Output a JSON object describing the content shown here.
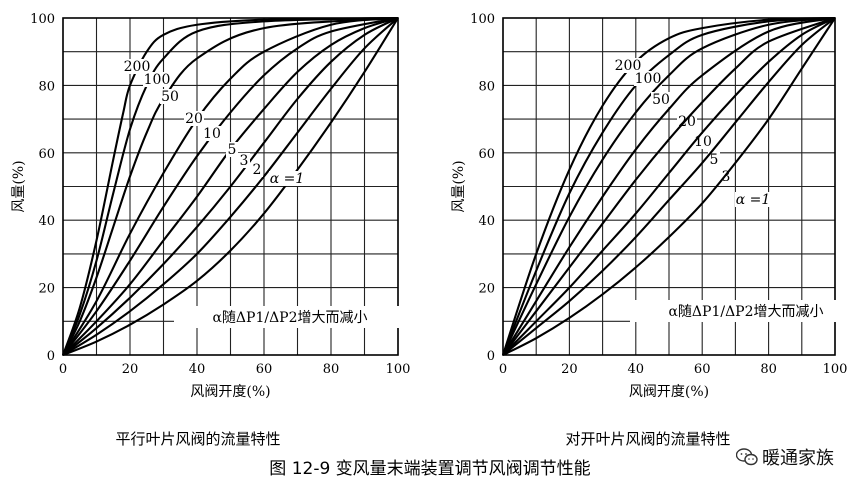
{
  "figure": {
    "caption": "图 12-9  变风量末端装置调节风阀调节性能",
    "watermark": "暖通家族"
  },
  "chart_data": [
    {
      "type": "line",
      "title": "平行叶片风阀的流量特性",
      "xlabel": "风阀开度(%)",
      "ylabel": "风量(%)",
      "xlim": [
        0,
        100
      ],
      "ylim": [
        0,
        100
      ],
      "xticks": [
        0,
        20,
        40,
        60,
        80,
        100
      ],
      "yticks": [
        0,
        20,
        40,
        60,
        80,
        100
      ],
      "grid": true,
      "annotation": "α随ΔP1/ΔP2增大而减小",
      "series": [
        {
          "name": "200",
          "points": [
            [
              0,
              0
            ],
            [
              5,
              14
            ],
            [
              10,
              34
            ],
            [
              15,
              58
            ],
            [
              18,
              72
            ],
            [
              20,
              80
            ],
            [
              25,
              90
            ],
            [
              30,
              95
            ],
            [
              40,
              98
            ],
            [
              60,
              99.5
            ],
            [
              100,
              100
            ]
          ]
        },
        {
          "name": "100",
          "points": [
            [
              0,
              0
            ],
            [
              5,
              12
            ],
            [
              10,
              28
            ],
            [
              15,
              48
            ],
            [
              20,
              67
            ],
            [
              25,
              80
            ],
            [
              30,
              88
            ],
            [
              40,
              96
            ],
            [
              60,
              99
            ],
            [
              100,
              100
            ]
          ]
        },
        {
          "name": "50",
          "points": [
            [
              0,
              0
            ],
            [
              5,
              10
            ],
            [
              10,
              23
            ],
            [
              15,
              38
            ],
            [
              20,
              53
            ],
            [
              25,
              66
            ],
            [
              30,
              76
            ],
            [
              40,
              88
            ],
            [
              60,
              97
            ],
            [
              100,
              100
            ]
          ]
        },
        {
          "name": "20",
          "points": [
            [
              0,
              0
            ],
            [
              10,
              16
            ],
            [
              20,
              36
            ],
            [
              30,
              54
            ],
            [
              40,
              70
            ],
            [
              50,
              82
            ],
            [
              60,
              90
            ],
            [
              80,
              98
            ],
            [
              100,
              100
            ]
          ]
        },
        {
          "name": "10",
          "points": [
            [
              0,
              0
            ],
            [
              10,
              13
            ],
            [
              20,
              28
            ],
            [
              30,
              44
            ],
            [
              40,
              59
            ],
            [
              50,
              72
            ],
            [
              60,
              83
            ],
            [
              70,
              91
            ],
            [
              80,
              96
            ],
            [
              100,
              100
            ]
          ]
        },
        {
          "name": "5",
          "points": [
            [
              0,
              0
            ],
            [
              10,
              10
            ],
            [
              20,
              21
            ],
            [
              30,
              34
            ],
            [
              40,
              47
            ],
            [
              50,
              61
            ],
            [
              60,
              73
            ],
            [
              70,
              84
            ],
            [
              80,
              92
            ],
            [
              90,
              97
            ],
            [
              100,
              100
            ]
          ]
        },
        {
          "name": "3",
          "points": [
            [
              0,
              0
            ],
            [
              10,
              8
            ],
            [
              20,
              17
            ],
            [
              30,
              27
            ],
            [
              40,
              38
            ],
            [
              50,
              50
            ],
            [
              60,
              63
            ],
            [
              70,
              76
            ],
            [
              80,
              87
            ],
            [
              90,
              95
            ],
            [
              100,
              100
            ]
          ]
        },
        {
          "name": "2",
          "points": [
            [
              0,
              0
            ],
            [
              10,
              6
            ],
            [
              20,
              13
            ],
            [
              30,
              21
            ],
            [
              40,
              30
            ],
            [
              50,
              41
            ],
            [
              60,
              53
            ],
            [
              70,
              66
            ],
            [
              80,
              79
            ],
            [
              90,
              91
            ],
            [
              100,
              100
            ]
          ]
        },
        {
          "name": "α =1",
          "points": [
            [
              0,
              0
            ],
            [
              10,
              4
            ],
            [
              20,
              9
            ],
            [
              30,
              15
            ],
            [
              40,
              22
            ],
            [
              50,
              31
            ],
            [
              60,
              42
            ],
            [
              70,
              55
            ],
            [
              80,
              69
            ],
            [
              90,
              84
            ],
            [
              100,
              100
            ]
          ]
        }
      ]
    },
    {
      "type": "line",
      "title": "对开叶片风阀的流量特性",
      "xlabel": "风阀开度(%)",
      "ylabel": "风量(%)",
      "xlim": [
        0,
        100
      ],
      "ylim": [
        0,
        100
      ],
      "xticks": [
        0,
        20,
        40,
        60,
        80,
        100
      ],
      "yticks": [
        0,
        20,
        40,
        60,
        80,
        100
      ],
      "grid": true,
      "annotation": "α随ΔP1/ΔP2增大而减小",
      "series": [
        {
          "name": "200",
          "points": [
            [
              0,
              0
            ],
            [
              10,
              30
            ],
            [
              20,
              55
            ],
            [
              30,
              74
            ],
            [
              40,
              87
            ],
            [
              50,
              94
            ],
            [
              60,
              97
            ],
            [
              80,
              99.5
            ],
            [
              100,
              100
            ]
          ]
        },
        {
          "name": "100",
          "points": [
            [
              0,
              0
            ],
            [
              10,
              25
            ],
            [
              20,
              48
            ],
            [
              30,
              66
            ],
            [
              40,
              80
            ],
            [
              50,
              89
            ],
            [
              60,
              95
            ],
            [
              80,
              99
            ],
            [
              100,
              100
            ]
          ]
        },
        {
          "name": "50",
          "points": [
            [
              0,
              0
            ],
            [
              10,
              21
            ],
            [
              20,
              41
            ],
            [
              30,
              58
            ],
            [
              40,
              72
            ],
            [
              50,
              83
            ],
            [
              60,
              91
            ],
            [
              80,
              98
            ],
            [
              100,
              100
            ]
          ]
        },
        {
          "name": "20",
          "points": [
            [
              0,
              0
            ],
            [
              10,
              16
            ],
            [
              20,
              32
            ],
            [
              30,
              47
            ],
            [
              40,
              61
            ],
            [
              50,
              73
            ],
            [
              60,
              83
            ],
            [
              80,
              96
            ],
            [
              100,
              100
            ]
          ]
        },
        {
          "name": "10",
          "points": [
            [
              0,
              0
            ],
            [
              10,
              13
            ],
            [
              20,
              26
            ],
            [
              30,
              39
            ],
            [
              40,
              52
            ],
            [
              50,
              64
            ],
            [
              60,
              75
            ],
            [
              70,
              85
            ],
            [
              80,
              93
            ],
            [
              100,
              100
            ]
          ]
        },
        {
          "name": "5",
          "points": [
            [
              0,
              0
            ],
            [
              10,
              10
            ],
            [
              20,
              20
            ],
            [
              30,
              31
            ],
            [
              40,
              42
            ],
            [
              50,
              54
            ],
            [
              60,
              66
            ],
            [
              70,
              77
            ],
            [
              80,
              87
            ],
            [
              90,
              95
            ],
            [
              100,
              100
            ]
          ]
        },
        {
          "name": "3",
          "points": [
            [
              0,
              0
            ],
            [
              10,
              8
            ],
            [
              20,
              16
            ],
            [
              30,
              25
            ],
            [
              40,
              35
            ],
            [
              50,
              46
            ],
            [
              60,
              57
            ],
            [
              70,
              69
            ],
            [
              80,
              81
            ],
            [
              90,
              92
            ],
            [
              100,
              100
            ]
          ]
        },
        {
          "name": "α =1",
          "points": [
            [
              0,
              0
            ],
            [
              10,
              5
            ],
            [
              20,
              11
            ],
            [
              30,
              18
            ],
            [
              40,
              26
            ],
            [
              50,
              35
            ],
            [
              60,
              45
            ],
            [
              70,
              57
            ],
            [
              80,
              70
            ],
            [
              90,
              85
            ],
            [
              100,
              100
            ]
          ]
        }
      ]
    }
  ]
}
